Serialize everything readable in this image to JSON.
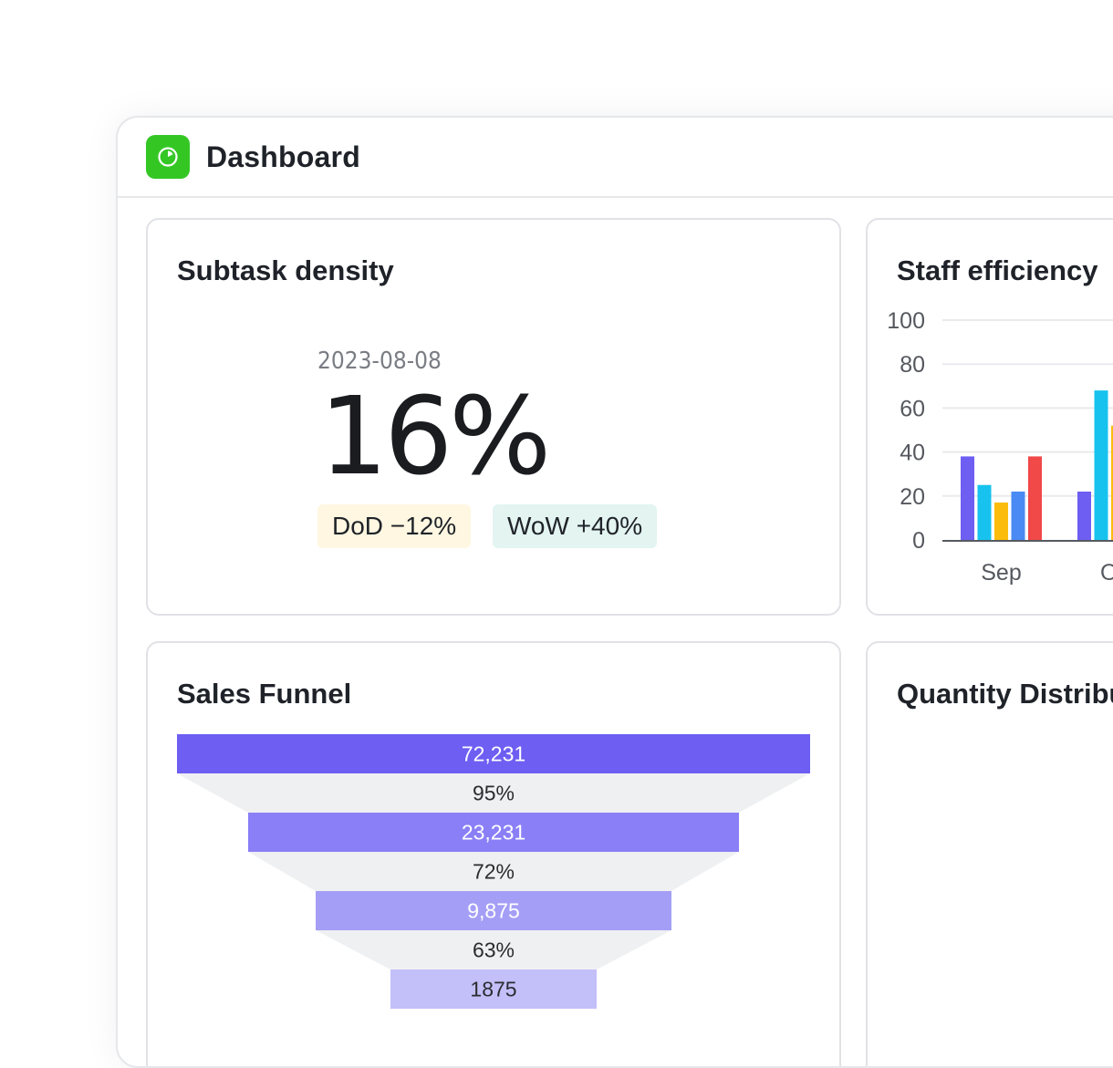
{
  "app": {
    "title": "Dashboard",
    "icon": "dashboard-gauge-icon",
    "icon_color": "#34c724"
  },
  "subtask_density": {
    "title": "Subtask density",
    "date": "2023-08-08",
    "value": "16%",
    "dod": "DoD −12%",
    "wow": "WoW +40%"
  },
  "staff_efficiency": {
    "title": "Staff efficiency"
  },
  "sales_funnel": {
    "title": "Sales Funnel"
  },
  "quantity_distribution": {
    "title": "Quantity Distribution"
  },
  "chart_data": [
    {
      "type": "bar",
      "title": "Staff efficiency",
      "categories": [
        "Sep",
        "Oct"
      ],
      "y_ticks": [
        "0",
        "20",
        "40",
        "60",
        "80",
        "100"
      ],
      "ylim": [
        0,
        100
      ],
      "grid": true,
      "series": [
        {
          "color": "#6e5ef2",
          "values": [
            38,
            22
          ]
        },
        {
          "color": "#17c3ee",
          "values": [
            25,
            68
          ]
        },
        {
          "color": "#fbbc0c",
          "values": [
            17,
            52
          ]
        },
        {
          "color": "#4a8af4",
          "values": [
            22,
            null
          ]
        },
        {
          "color": "#f14848",
          "values": [
            38,
            null
          ]
        }
      ]
    },
    {
      "type": "funnel",
      "title": "Sales Funnel",
      "stages": [
        {
          "value": "72,231",
          "color": "#6e5ef2"
        },
        {
          "value": "23,231",
          "color": "#8a7ff6"
        },
        {
          "value": "9,875",
          "color": "#a59ef6"
        },
        {
          "value": "1875",
          "color": "#c3bff9"
        }
      ],
      "conversions": [
        "95%",
        "72%",
        "63%"
      ]
    }
  ]
}
